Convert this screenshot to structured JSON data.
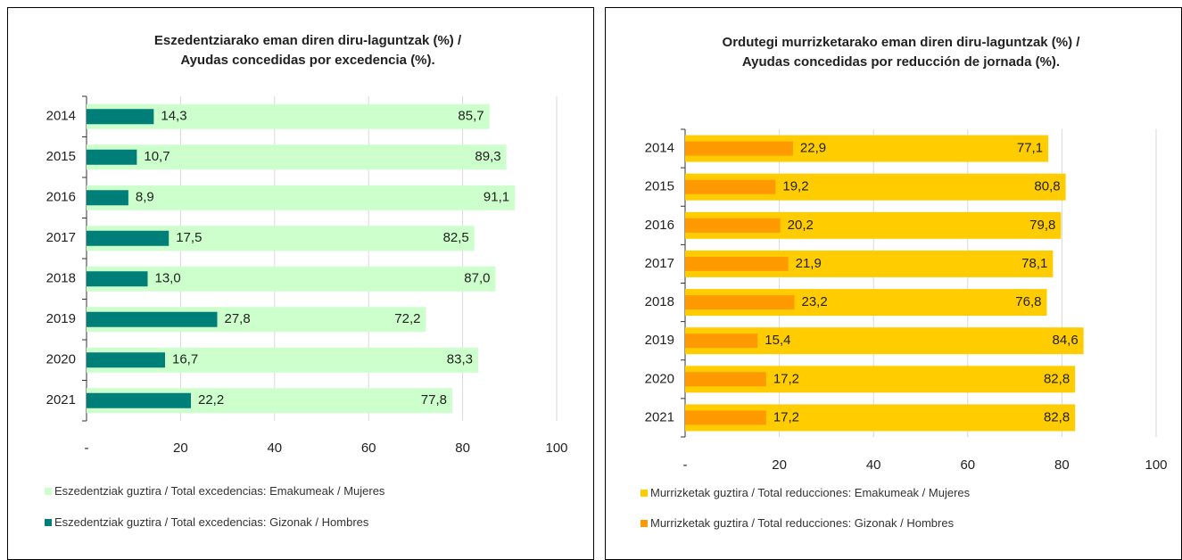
{
  "chart_data": [
    {
      "type": "bar",
      "orientation": "horizontal",
      "overlap": true,
      "title": "Eszedentziarako eman diren diru-laguntzak (%) / Ayudas concedidas por excedencia (%).",
      "categories": [
        "2014",
        "2015",
        "2016",
        "2017",
        "2018",
        "2019",
        "2020",
        "2021"
      ],
      "series": [
        {
          "name": "Eszedentziak guztira / Total excedencias: Emakumeak / Mujeres",
          "color": "#ccffcc",
          "values": [
            85.7,
            89.3,
            91.1,
            82.5,
            87.0,
            72.2,
            83.3,
            77.8
          ],
          "value_labels": [
            "85,7",
            "89,3",
            "91,1",
            "82,5",
            "87,0",
            "72,2",
            "83,3",
            "77,8"
          ]
        },
        {
          "name": "Eszedentziak guztira / Total excedencias: Gizonak / Hombres",
          "color": "#007f79",
          "values": [
            14.3,
            10.7,
            8.9,
            17.5,
            13.0,
            27.8,
            16.7,
            22.2
          ],
          "value_labels": [
            "14,3",
            "10,7",
            "8,9",
            "17,5",
            "13,0",
            "27,8",
            "16,7",
            "22,2"
          ]
        }
      ],
      "xlim": [
        0,
        100
      ],
      "xticks": [
        {
          "value": 0,
          "label": "-"
        },
        20,
        40,
        60,
        80,
        100
      ],
      "grid": true
    },
    {
      "type": "bar",
      "orientation": "horizontal",
      "overlap": true,
      "title": "Ordutegi murrizketarako eman diren diru-laguntzak (%) / Ayudas concedidas por reducción de jornada (%).",
      "categories": [
        "2014",
        "2015",
        "2016",
        "2017",
        "2018",
        "2019",
        "2020",
        "2021"
      ],
      "series": [
        {
          "name": "Murrizketak guztira / Total reducciones: Emakumeak / Mujeres",
          "color": "#ffcc00",
          "values": [
            77.1,
            80.8,
            79.8,
            78.1,
            76.8,
            84.6,
            82.8,
            82.8
          ],
          "value_labels": [
            "77,1",
            "80,8",
            "79,8",
            "78,1",
            "76,8",
            "84,6",
            "82,8",
            "82,8"
          ]
        },
        {
          "name": "Murrizketak guztira / Total reducciones: Gizonak / Hombres",
          "color": "#ff9900",
          "values": [
            22.9,
            19.2,
            20.2,
            21.9,
            23.2,
            15.4,
            17.2,
            17.2
          ],
          "value_labels": [
            "22,9",
            "19,2",
            "20,2",
            "21,9",
            "23,2",
            "15,4",
            "17,2",
            "17,2"
          ]
        }
      ],
      "xlim": [
        0,
        100
      ],
      "xticks": [
        {
          "value": 0,
          "label": "-"
        },
        20,
        40,
        60,
        80,
        100
      ],
      "grid": true
    }
  ]
}
